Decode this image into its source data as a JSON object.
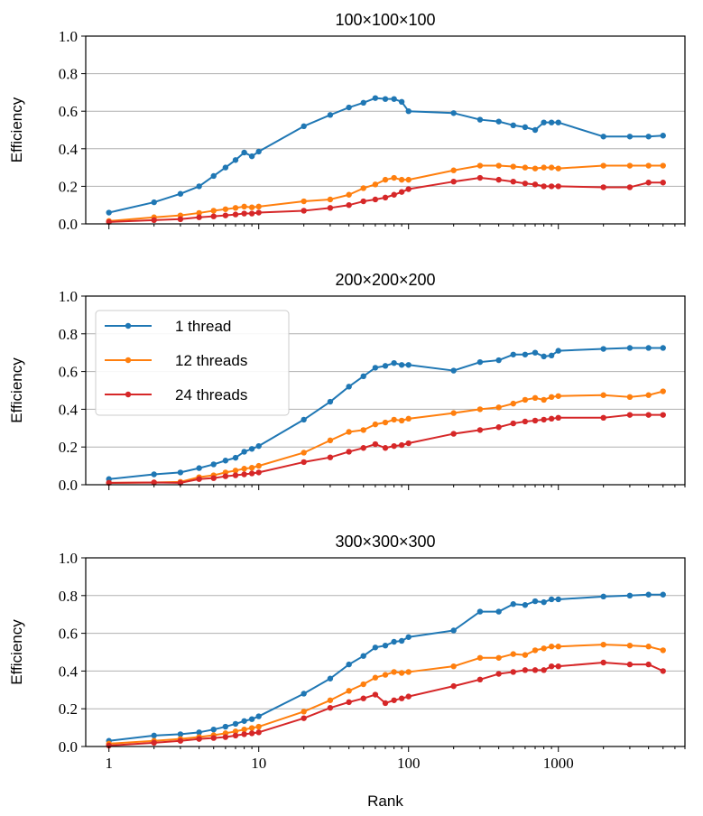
{
  "chart_data": [
    {
      "type": "line",
      "title": "100×100×100",
      "xlabel": "",
      "ylabel": "Efficiency",
      "xscale": "log",
      "xlim": [
        0.7,
        7000
      ],
      "ylim": [
        0,
        1.0
      ],
      "yticks": [
        "0.0",
        "0.2",
        "0.4",
        "0.6",
        "0.8",
        "1.0"
      ],
      "xticks": [],
      "grid": "horizontal",
      "x": [
        1,
        2,
        3,
        4,
        5,
        6,
        7,
        8,
        9,
        10,
        20,
        30,
        40,
        50,
        60,
        70,
        80,
        90,
        100,
        200,
        300,
        400,
        500,
        600,
        700,
        800,
        900,
        1000,
        2000,
        3000,
        4000,
        5000
      ],
      "series": [
        {
          "name": "1 thread",
          "color": "#1f77b4",
          "values": [
            0.06,
            0.115,
            0.16,
            0.2,
            0.255,
            0.3,
            0.34,
            0.38,
            0.36,
            0.385,
            0.52,
            0.58,
            0.62,
            0.645,
            0.67,
            0.665,
            0.665,
            0.65,
            0.6,
            0.59,
            0.555,
            0.545,
            0.525,
            0.515,
            0.5,
            0.54,
            0.54,
            0.54,
            0.465,
            0.465,
            0.465,
            0.47
          ]
        },
        {
          "name": "12 threads",
          "color": "#ff7f0e",
          "values": [
            0.015,
            0.035,
            0.045,
            0.058,
            0.07,
            0.078,
            0.085,
            0.092,
            0.088,
            0.092,
            0.12,
            0.13,
            0.155,
            0.19,
            0.21,
            0.235,
            0.245,
            0.235,
            0.235,
            0.285,
            0.31,
            0.31,
            0.305,
            0.3,
            0.295,
            0.3,
            0.3,
            0.295,
            0.31,
            0.31,
            0.31,
            0.31
          ]
        },
        {
          "name": "24 threads",
          "color": "#d62728",
          "values": [
            0.01,
            0.02,
            0.025,
            0.035,
            0.04,
            0.045,
            0.05,
            0.055,
            0.055,
            0.06,
            0.07,
            0.085,
            0.1,
            0.12,
            0.13,
            0.14,
            0.155,
            0.17,
            0.185,
            0.225,
            0.245,
            0.235,
            0.225,
            0.215,
            0.21,
            0.2,
            0.2,
            0.2,
            0.195,
            0.195,
            0.22,
            0.22
          ]
        }
      ]
    },
    {
      "type": "line",
      "title": "200×200×200",
      "xlabel": "",
      "ylabel": "Efficiency",
      "xscale": "log",
      "xlim": [
        0.7,
        7000
      ],
      "ylim": [
        0,
        1.0
      ],
      "yticks": [
        "0.0",
        "0.2",
        "0.4",
        "0.6",
        "0.8",
        "1.0"
      ],
      "xticks": [],
      "grid": "horizontal",
      "legend": "upper left",
      "x": [
        1,
        2,
        3,
        4,
        5,
        6,
        7,
        8,
        9,
        10,
        20,
        30,
        40,
        50,
        60,
        70,
        80,
        90,
        100,
        200,
        300,
        400,
        500,
        600,
        700,
        800,
        900,
        1000,
        2000,
        3000,
        4000,
        5000
      ],
      "series": [
        {
          "name": "1 thread",
          "color": "#1f77b4",
          "values": [
            0.03,
            0.055,
            0.065,
            0.088,
            0.108,
            0.128,
            0.143,
            0.175,
            0.19,
            0.205,
            0.345,
            0.44,
            0.52,
            0.575,
            0.62,
            0.63,
            0.645,
            0.635,
            0.635,
            0.605,
            0.65,
            0.66,
            0.69,
            0.69,
            0.7,
            0.68,
            0.685,
            0.71,
            0.72,
            0.725,
            0.725,
            0.725
          ]
        },
        {
          "name": "12 threads",
          "color": "#ff7f0e",
          "values": [
            0.01,
            0.012,
            0.015,
            0.04,
            0.05,
            0.065,
            0.075,
            0.085,
            0.09,
            0.1,
            0.17,
            0.235,
            0.28,
            0.29,
            0.32,
            0.33,
            0.345,
            0.34,
            0.35,
            0.38,
            0.4,
            0.41,
            0.43,
            0.45,
            0.46,
            0.45,
            0.465,
            0.47,
            0.475,
            0.465,
            0.475,
            0.495
          ]
        },
        {
          "name": "24 threads",
          "color": "#d62728",
          "values": [
            0.01,
            0.012,
            0.01,
            0.03,
            0.035,
            0.045,
            0.05,
            0.055,
            0.06,
            0.065,
            0.12,
            0.145,
            0.175,
            0.195,
            0.215,
            0.195,
            0.205,
            0.21,
            0.22,
            0.27,
            0.29,
            0.305,
            0.325,
            0.335,
            0.34,
            0.345,
            0.35,
            0.355,
            0.355,
            0.37,
            0.37,
            0.37
          ]
        }
      ]
    },
    {
      "type": "line",
      "title": "300×300×300",
      "xlabel": "Rank",
      "ylabel": "Efficiency",
      "xscale": "log",
      "xlim": [
        0.7,
        7000
      ],
      "ylim": [
        0,
        1.0
      ],
      "yticks": [
        "0.0",
        "0.2",
        "0.4",
        "0.6",
        "0.8",
        "1.0"
      ],
      "xticks": [
        "1",
        "10",
        "100",
        "1000"
      ],
      "grid": "horizontal",
      "x": [
        1,
        2,
        3,
        4,
        5,
        6,
        7,
        8,
        9,
        10,
        20,
        30,
        40,
        50,
        60,
        70,
        80,
        90,
        100,
        200,
        300,
        400,
        500,
        600,
        700,
        800,
        900,
        1000,
        2000,
        3000,
        4000,
        5000
      ],
      "series": [
        {
          "name": "1 thread",
          "color": "#1f77b4",
          "values": [
            0.03,
            0.058,
            0.065,
            0.075,
            0.09,
            0.105,
            0.12,
            0.135,
            0.145,
            0.16,
            0.28,
            0.36,
            0.435,
            0.48,
            0.525,
            0.535,
            0.555,
            0.56,
            0.58,
            0.615,
            0.715,
            0.715,
            0.755,
            0.75,
            0.77,
            0.765,
            0.78,
            0.78,
            0.795,
            0.8,
            0.805,
            0.805
          ]
        },
        {
          "name": "12 threads",
          "color": "#ff7f0e",
          "values": [
            0.015,
            0.03,
            0.04,
            0.05,
            0.06,
            0.07,
            0.08,
            0.09,
            0.098,
            0.105,
            0.185,
            0.245,
            0.295,
            0.33,
            0.365,
            0.38,
            0.395,
            0.39,
            0.395,
            0.425,
            0.47,
            0.47,
            0.49,
            0.485,
            0.51,
            0.52,
            0.53,
            0.53,
            0.54,
            0.535,
            0.53,
            0.51
          ]
        },
        {
          "name": "24 threads",
          "color": "#d62728",
          "values": [
            0.005,
            0.02,
            0.03,
            0.04,
            0.045,
            0.05,
            0.058,
            0.065,
            0.07,
            0.075,
            0.15,
            0.205,
            0.235,
            0.255,
            0.275,
            0.23,
            0.245,
            0.255,
            0.265,
            0.32,
            0.355,
            0.385,
            0.395,
            0.405,
            0.405,
            0.405,
            0.425,
            0.425,
            0.445,
            0.435,
            0.435,
            0.4
          ]
        }
      ]
    }
  ]
}
